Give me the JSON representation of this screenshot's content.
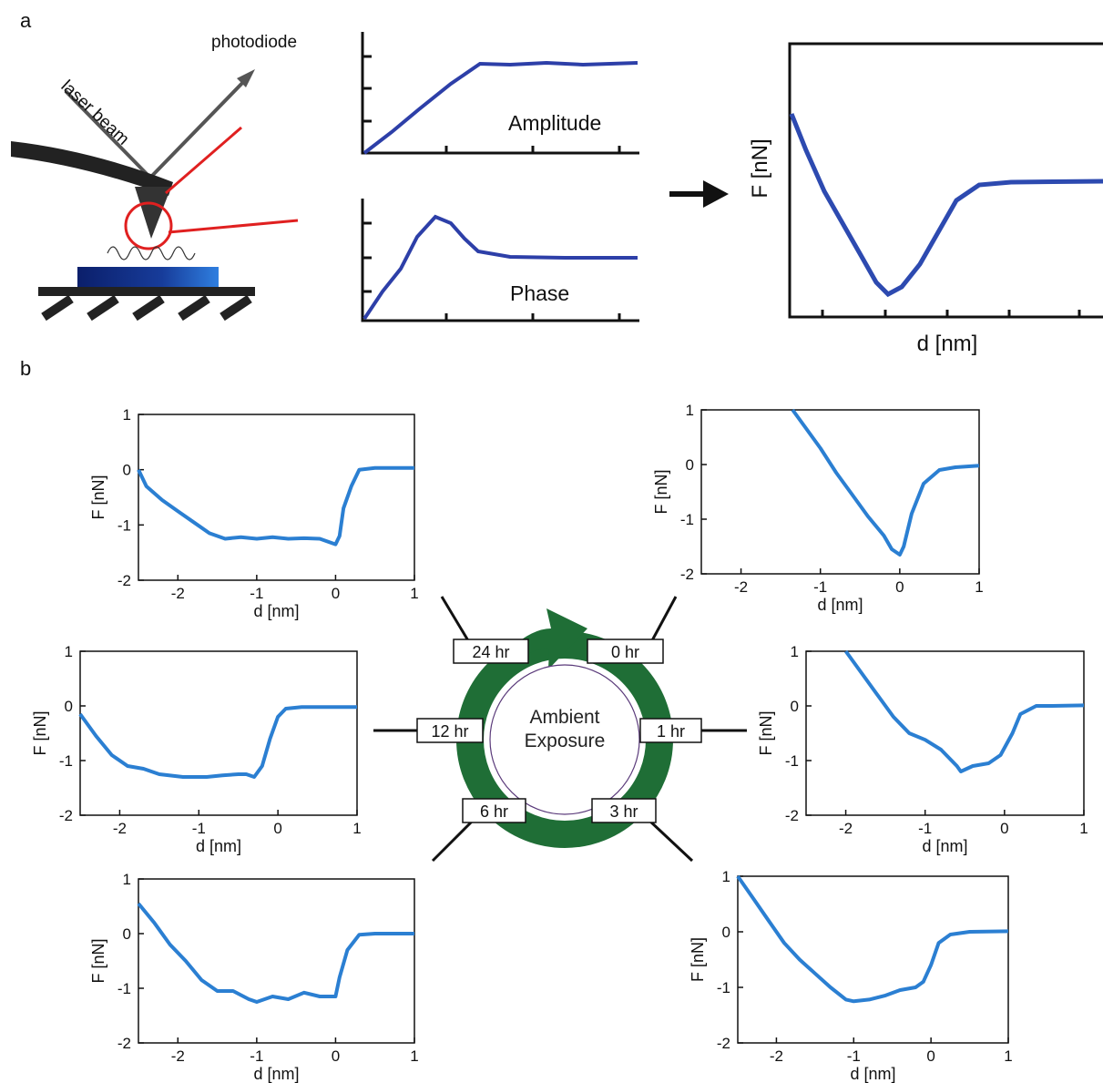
{
  "panel_labels": [
    "a",
    "b"
  ],
  "schematic": {
    "photodiode": "photodiode",
    "laser_beam": "laser beam",
    "amplitude": "Amplitude",
    "phase": "Phase",
    "force_ylabel": "F [nN]",
    "force_xlabel": "d [nm]"
  },
  "ambient_label": "Ambient Exposure",
  "chart_data": [
    {
      "type": "line",
      "annotation": "24 hr",
      "xlabel": "d [nm]",
      "ylabel": "F [nN]",
      "color": "#2b7fd2",
      "xlim": [
        -2.5,
        1
      ],
      "ylim": [
        -2,
        1
      ],
      "xticks": [
        -2,
        -1,
        0,
        1
      ],
      "yticks": [
        -2,
        -1,
        0,
        1
      ],
      "x": [
        -2.5,
        -2.4,
        -2.2,
        -2,
        -1.8,
        -1.6,
        -1.4,
        -1.2,
        -1,
        -0.8,
        -0.6,
        -0.4,
        -0.2,
        0,
        0.05,
        0.1,
        0.2,
        0.3,
        0.5,
        1
      ],
      "values": [
        0,
        -0.3,
        -0.55,
        -0.75,
        -0.95,
        -1.15,
        -1.25,
        -1.22,
        -1.25,
        -1.22,
        -1.25,
        -1.24,
        -1.25,
        -1.35,
        -1.2,
        -0.7,
        -0.3,
        0,
        0.03,
        0.03
      ]
    },
    {
      "type": "line",
      "annotation": "0 hr",
      "xlabel": "d [nm]",
      "ylabel": "F [nN]",
      "color": "#2b7fd2",
      "xlim": [
        -2.5,
        1
      ],
      "ylim": [
        -2,
        1
      ],
      "xticks": [
        -2,
        -1,
        0,
        1
      ],
      "yticks": [
        -2,
        -1,
        0,
        1
      ],
      "x": [
        -1.35,
        -1.2,
        -1,
        -0.8,
        -0.6,
        -0.4,
        -0.2,
        -0.1,
        0,
        0.05,
        0.15,
        0.3,
        0.5,
        0.7,
        1
      ],
      "values": [
        1,
        0.7,
        0.3,
        -0.15,
        -0.55,
        -0.95,
        -1.3,
        -1.55,
        -1.65,
        -1.5,
        -0.9,
        -0.35,
        -0.1,
        -0.05,
        -0.02
      ]
    },
    {
      "type": "line",
      "annotation": "12 hr",
      "xlabel": "d [nm]",
      "ylabel": "F [nN]",
      "color": "#2b7fd2",
      "xlim": [
        -2.5,
        1
      ],
      "ylim": [
        -2,
        1
      ],
      "xticks": [
        -2,
        -1,
        0,
        1
      ],
      "yticks": [
        -2,
        -1,
        0,
        1
      ],
      "x": [
        -2.5,
        -2.3,
        -2.1,
        -1.9,
        -1.7,
        -1.5,
        -1.2,
        -0.9,
        -0.7,
        -0.5,
        -0.4,
        -0.3,
        -0.2,
        -0.1,
        0,
        0.1,
        0.3,
        1
      ],
      "values": [
        -0.15,
        -0.55,
        -0.9,
        -1.1,
        -1.15,
        -1.25,
        -1.3,
        -1.3,
        -1.27,
        -1.25,
        -1.25,
        -1.3,
        -1.1,
        -0.6,
        -0.2,
        -0.05,
        -0.02,
        -0.02
      ]
    },
    {
      "type": "line",
      "annotation": "1 hr",
      "xlabel": "d [nm]",
      "ylabel": "F [nN]",
      "color": "#2b7fd2",
      "xlim": [
        -2.5,
        1
      ],
      "ylim": [
        -2,
        1
      ],
      "xticks": [
        -2,
        -1,
        0,
        1
      ],
      "yticks": [
        -2,
        -1,
        0,
        1
      ],
      "x": [
        -2,
        -1.8,
        -1.6,
        -1.4,
        -1.2,
        -1,
        -0.8,
        -0.6,
        -0.55,
        -0.4,
        -0.2,
        -0.05,
        0.1,
        0.2,
        0.4,
        0.6,
        1
      ],
      "values": [
        1,
        0.6,
        0.2,
        -0.2,
        -0.5,
        -0.62,
        -0.8,
        -1.1,
        -1.2,
        -1.1,
        -1.05,
        -0.9,
        -0.5,
        -0.15,
        0,
        0,
        0.01
      ]
    },
    {
      "type": "line",
      "annotation": "6 hr",
      "xlabel": "d [nm]",
      "ylabel": "F [nN]",
      "color": "#2b7fd2",
      "xlim": [
        -2.5,
        1
      ],
      "ylim": [
        -2,
        1
      ],
      "xticks": [
        -2,
        -1,
        0,
        1
      ],
      "yticks": [
        -2,
        -1,
        0,
        1
      ],
      "x": [
        -2.5,
        -2.3,
        -2.1,
        -1.9,
        -1.7,
        -1.5,
        -1.3,
        -1.1,
        -1,
        -0.8,
        -0.6,
        -0.4,
        -0.2,
        0,
        0.05,
        0.15,
        0.3,
        0.5,
        1
      ],
      "values": [
        0.55,
        0.2,
        -0.2,
        -0.5,
        -0.85,
        -1.05,
        -1.05,
        -1.2,
        -1.25,
        -1.15,
        -1.2,
        -1.08,
        -1.15,
        -1.15,
        -0.8,
        -0.3,
        -0.02,
        0,
        0
      ]
    },
    {
      "type": "line",
      "annotation": "3 hr",
      "xlabel": "d [nm]",
      "ylabel": "F [nN]",
      "color": "#2b7fd2",
      "xlim": [
        -2.5,
        1
      ],
      "ylim": [
        -2,
        1
      ],
      "xticks": [
        -2,
        -1,
        0,
        1
      ],
      "yticks": [
        -2,
        -1,
        0,
        1
      ],
      "x": [
        -2.5,
        -2.3,
        -2.1,
        -1.9,
        -1.7,
        -1.5,
        -1.3,
        -1.1,
        -1,
        -0.8,
        -0.6,
        -0.4,
        -0.2,
        -0.1,
        0,
        0.1,
        0.25,
        0.5,
        1
      ],
      "values": [
        1,
        0.6,
        0.2,
        -0.2,
        -0.5,
        -0.75,
        -1,
        -1.22,
        -1.25,
        -1.22,
        -1.15,
        -1.05,
        -1,
        -0.9,
        -0.6,
        -0.2,
        -0.05,
        0,
        0.01
      ]
    }
  ]
}
